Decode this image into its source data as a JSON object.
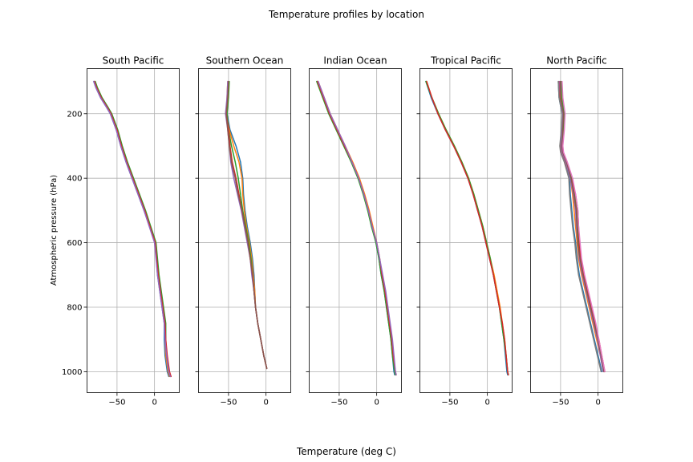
{
  "figure_title": "Temperature profiles by location",
  "x_label": "Temperature (deg C)",
  "y_label": "Atmospheric pressure (hPa)",
  "chart_data": {
    "type": "line",
    "title": "Temperature profiles by location",
    "xlabel": "Temperature (deg C)",
    "ylabel": "Atmospheric pressure (hPa)",
    "xlim": [
      -90,
      33
    ],
    "ylim": [
      1065,
      60
    ],
    "y_inverted": true,
    "shared_axes": true,
    "grid": true,
    "xticks": [
      -50,
      0
    ],
    "yticks": [
      200,
      400,
      600,
      800,
      1000
    ],
    "colors": [
      "#1f77b4",
      "#ff7f0e",
      "#2ca02c",
      "#d62728",
      "#9467bd",
      "#8c564b",
      "#e377c2",
      "#7f7f7f",
      "#bcbd22",
      "#17becf"
    ],
    "panels": [
      {
        "title": "South Pacific",
        "pressure": [
          100,
          120,
          150,
          180,
          200,
          250,
          300,
          350,
          400,
          450,
          500,
          600,
          700,
          800,
          850,
          900,
          950,
          1000,
          1015
        ],
        "series": [
          {
            "temperature": [
              -81,
              -78,
              -72,
              -64,
              -59,
              -51,
              -45,
              -38,
              -30,
              -22,
              -14,
              1,
              4,
              10,
              13,
              13,
              14,
              17,
              19
            ]
          },
          {
            "temperature": [
              -80,
              -77,
              -71,
              -63,
              -58,
              -50,
              -44,
              -37,
              -29,
              -21,
              -13,
              1,
              5,
              11,
              14,
              14,
              15,
              18,
              20
            ]
          },
          {
            "temperature": [
              -79,
              -76,
              -70,
              -62,
              -57,
              -49,
              -43,
              -36,
              -28,
              -20,
              -12,
              2,
              6,
              12,
              15,
              15,
              16,
              19,
              21
            ]
          },
          {
            "temperature": [
              -80,
              -77,
              -71,
              -63,
              -58,
              -50,
              -44,
              -37,
              -29,
              -21,
              -13,
              1,
              5,
              11,
              14,
              15,
              17,
              20,
              22
            ]
          },
          {
            "temperature": [
              -81,
              -78,
              -72,
              -64,
              -59,
              -51,
              -45,
              -38,
              -30,
              -22,
              -14,
              0,
              4,
              10,
              13,
              14,
              16,
              19,
              21
            ]
          }
        ]
      },
      {
        "title": "Southern Ocean",
        "pressure": [
          100,
          150,
          200,
          250,
          300,
          350,
          400,
          450,
          500,
          550,
          600,
          650,
          700,
          750,
          800,
          850,
          900,
          950,
          990
        ],
        "series": [
          {
            "temperature": [
              -50,
              -51,
              -52,
              -48,
              -40,
              -34,
              -31,
              -30,
              -28,
              -25,
              -21,
              -18,
              -16,
              -15,
              -14,
              -11,
              -7,
              -3,
              1
            ]
          },
          {
            "temperature": [
              -51,
              -52,
              -53,
              -49,
              -43,
              -36,
              -32,
              -31,
              -29,
              -26,
              -22,
              -19,
              -17,
              -15,
              -14,
              -11,
              -7,
              -3,
              1
            ]
          },
          {
            "temperature": [
              -49,
              -50,
              -52,
              -50,
              -46,
              -41,
              -37,
              -34,
              -31,
              -27,
              -23,
              -20,
              -18,
              -16,
              -14,
              -11,
              -7,
              -3,
              1
            ]
          },
          {
            "temperature": [
              -50,
              -51,
              -53,
              -50,
              -48,
              -45,
              -40,
              -36,
              -32,
              -28,
              -24,
              -21,
              -18,
              -16,
              -14,
              -11,
              -7,
              -3,
              1
            ]
          },
          {
            "temperature": [
              -51,
              -52,
              -54,
              -51,
              -49,
              -47,
              -43,
              -38,
              -33,
              -29,
              -25,
              -21,
              -19,
              -16,
              -14,
              -11,
              -7,
              -3,
              1
            ]
          },
          {
            "temperature": [
              -50,
              -51,
              -53,
              -51,
              -49,
              -46,
              -41,
              -37,
              -32,
              -28,
              -24,
              -21,
              -18,
              -16,
              -14,
              -11,
              -7,
              -3,
              1
            ]
          }
        ]
      },
      {
        "title": "Indian Ocean",
        "pressure": [
          100,
          150,
          200,
          250,
          300,
          350,
          400,
          450,
          500,
          550,
          600,
          650,
          700,
          750,
          800,
          850,
          900,
          950,
          1000,
          1010
        ],
        "series": [
          {
            "temperature": [
              -79,
              -71,
              -63,
              -53,
              -43,
              -33,
              -24,
              -17,
              -11,
              -6,
              -1,
              3,
              6,
              10,
              13,
              16,
              19,
              21,
              23,
              24
            ]
          },
          {
            "temperature": [
              -78,
              -70,
              -62,
              -52,
              -42,
              -32,
              -23,
              -16,
              -10,
              -5,
              0,
              4,
              7,
              11,
              14,
              17,
              20,
              22,
              24,
              25
            ]
          },
          {
            "temperature": [
              -80,
              -72,
              -64,
              -54,
              -44,
              -34,
              -25,
              -18,
              -12,
              -7,
              -1,
              3,
              6,
              10,
              13,
              16,
              19,
              21,
              24,
              25
            ]
          },
          {
            "temperature": [
              -79,
              -71,
              -63,
              -53,
              -43,
              -33,
              -24,
              -17,
              -11,
              -6,
              0,
              4,
              7,
              11,
              14,
              17,
              20,
              22,
              25,
              26
            ]
          },
          {
            "temperature": [
              -78,
              -70,
              -62,
              -52,
              -42,
              -33,
              -24,
              -17,
              -11,
              -6,
              0,
              4,
              8,
              12,
              15,
              18,
              21,
              23,
              25,
              26
            ]
          }
        ]
      },
      {
        "title": "Tropical Pacific",
        "pressure": [
          100,
          150,
          200,
          250,
          300,
          350,
          400,
          450,
          500,
          550,
          600,
          650,
          700,
          750,
          800,
          850,
          900,
          950,
          1000,
          1010
        ],
        "series": [
          {
            "temperature": [
              -82,
              -75,
              -66,
              -56,
              -45,
              -35,
              -26,
              -19,
              -13,
              -7,
              -2,
              3,
              8,
              12,
              16,
              19,
              22,
              24,
              26,
              27
            ]
          },
          {
            "temperature": [
              -81,
              -74,
              -65,
              -55,
              -44,
              -34,
              -25,
              -18,
              -12,
              -6,
              -1,
              4,
              9,
              13,
              17,
              20,
              23,
              25,
              27,
              28
            ]
          },
          {
            "temperature": [
              -82,
              -74,
              -65,
              -55,
              -44,
              -34,
              -25,
              -18,
              -12,
              -6,
              -1,
              4,
              8,
              12,
              16,
              19,
              22,
              25,
              27,
              28
            ]
          },
          {
            "temperature": [
              -81,
              -74,
              -66,
              -56,
              -45,
              -35,
              -26,
              -19,
              -13,
              -7,
              -2,
              3,
              8,
              12,
              16,
              20,
              23,
              25,
              27,
              28
            ]
          }
        ]
      },
      {
        "title": "North Pacific",
        "pressure": [
          100,
          150,
          200,
          250,
          300,
          320,
          350,
          400,
          450,
          500,
          550,
          600,
          650,
          700,
          750,
          800,
          850,
          900,
          950,
          1000
        ],
        "series": [
          {
            "temperature": [
              -53,
              -52,
              -48,
              -48,
              -50,
              -49,
              -44,
              -38,
              -37,
              -35,
              -33,
              -30,
              -28,
              -25,
              -20,
              -15,
              -10,
              -5,
              0,
              5
            ]
          },
          {
            "temperature": [
              -50,
              -49,
              -46,
              -47,
              -49,
              -48,
              -43,
              -37,
              -34,
              -32,
              -30,
              -28,
              -26,
              -22,
              -17,
              -12,
              -7,
              -2,
              3,
              7
            ]
          },
          {
            "temperature": [
              -49,
              -48,
              -45,
              -46,
              -48,
              -47,
              -42,
              -35,
              -31,
              -28,
              -27,
              -26,
              -24,
              -20,
              -15,
              -10,
              -5,
              0,
              4,
              8
            ]
          },
          {
            "temperature": [
              -52,
              -51,
              -47,
              -47,
              -50,
              -49,
              -44,
              -36,
              -30,
              -27,
              -26,
              -25,
              -23,
              -19,
              -14,
              -9,
              -4,
              1,
              5,
              9
            ]
          },
          {
            "temperature": [
              -51,
              -50,
              -47,
              -48,
              -49,
              -48,
              -43,
              -37,
              -33,
              -30,
              -29,
              -27,
              -25,
              -21,
              -16,
              -11,
              -6,
              -1,
              3,
              7
            ]
          },
          {
            "temperature": [
              -50,
              -50,
              -46,
              -47,
              -48,
              -47,
              -42,
              -36,
              -32,
              -29,
              -28,
              -27,
              -24,
              -20,
              -15,
              -10,
              -5,
              0,
              4,
              8
            ]
          },
          {
            "temperature": [
              -48,
              -47,
              -44,
              -45,
              -47,
              -46,
              -41,
              -34,
              -30,
              -27,
              -26,
              -24,
              -22,
              -18,
              -13,
              -8,
              -3,
              1,
              5,
              9
            ]
          },
          {
            "temperature": [
              -53,
              -52,
              -48,
              -49,
              -51,
              -50,
              -45,
              -39,
              -38,
              -36,
              -34,
              -31,
              -29,
              -26,
              -21,
              -16,
              -11,
              -6,
              -1,
              4
            ]
          }
        ]
      }
    ]
  }
}
